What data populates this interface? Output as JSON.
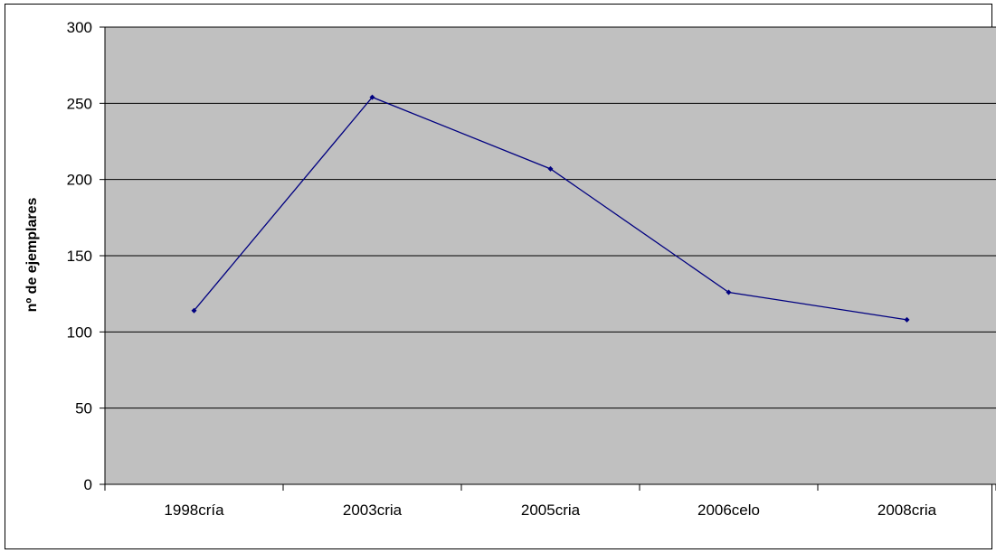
{
  "chart_data": {
    "type": "line",
    "title": "",
    "xlabel": "",
    "ylabel": "nº de ejemplares",
    "categories": [
      "1998cría",
      "2003cria",
      "2005cria",
      "2006celo",
      "2008cria"
    ],
    "series": [
      {
        "values": [
          114,
          254,
          207,
          126,
          108
        ],
        "color": "#000080"
      }
    ],
    "ylim": [
      0,
      300
    ],
    "yticks": [
      0,
      50,
      100,
      150,
      200,
      250,
      300
    ],
    "grid": true,
    "legend": "none",
    "colors": {
      "plot_background": "#c0c0c0",
      "gridline": "#000000",
      "line": "#000080"
    }
  }
}
